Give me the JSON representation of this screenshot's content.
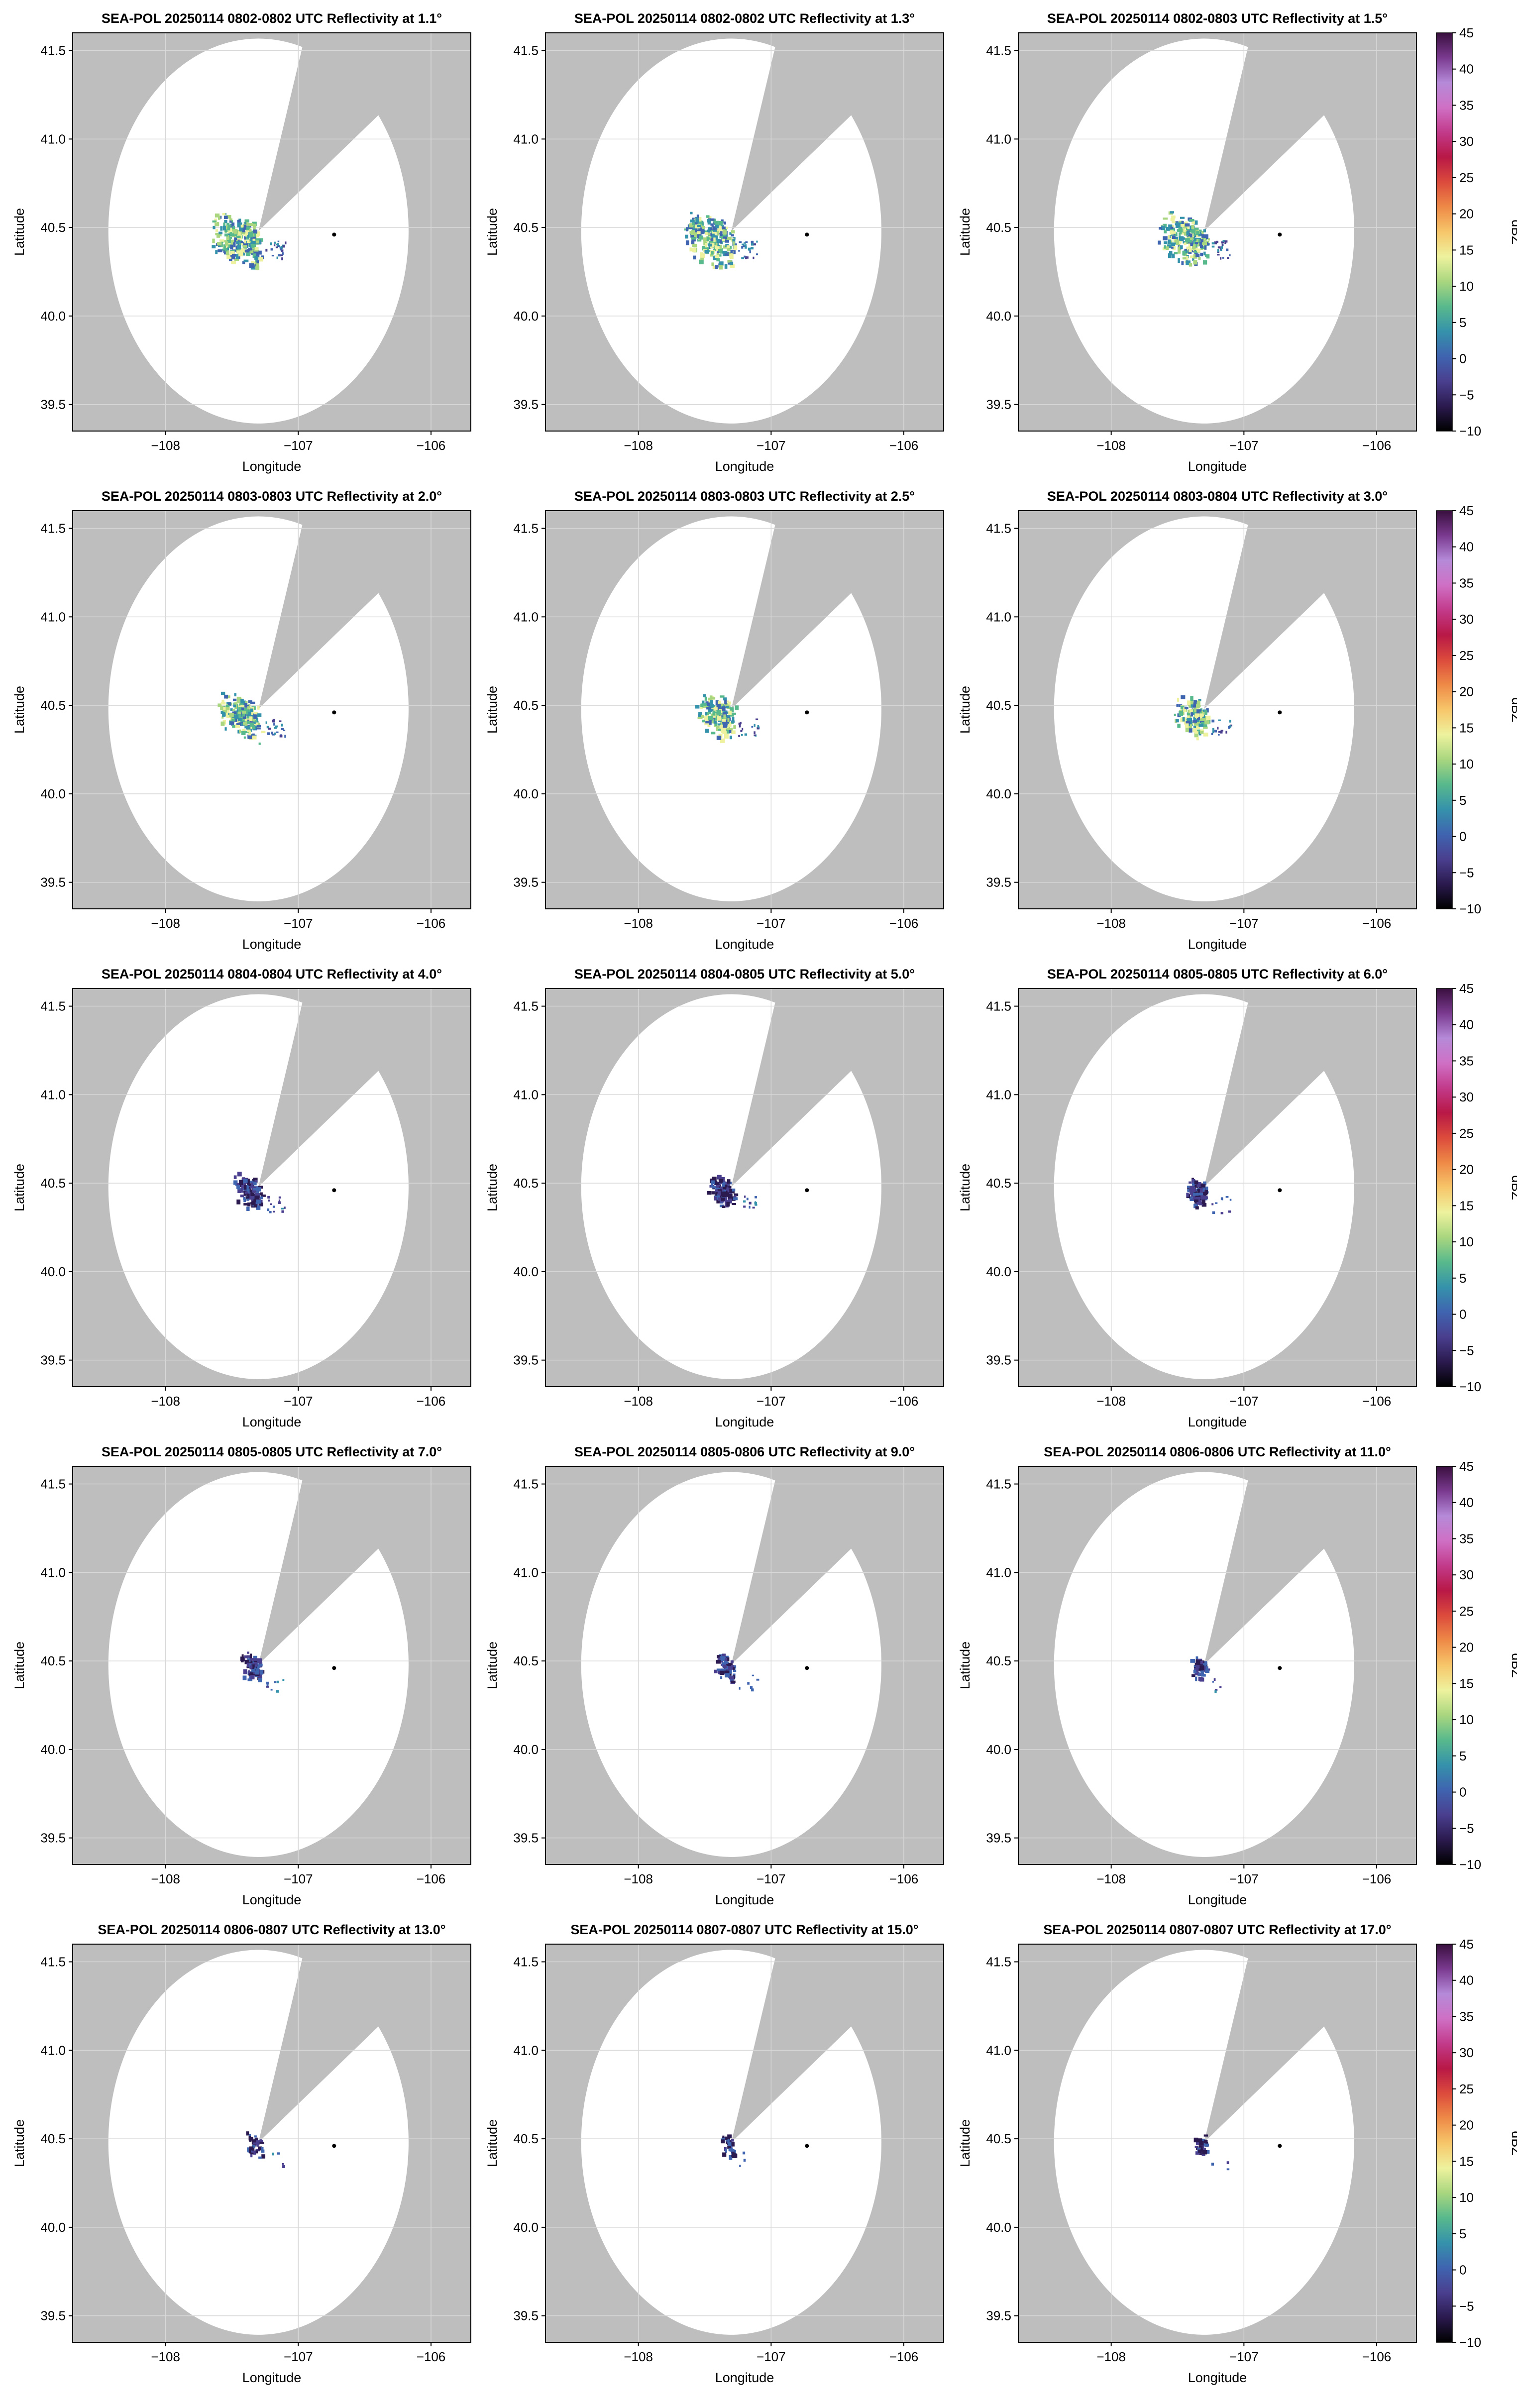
{
  "figure": {
    "product": "Reflectivity",
    "radar": "SEA-POL",
    "date": "20250114"
  },
  "colorbar": {
    "label": "dBZ",
    "ticks": [
      "45",
      "40",
      "35",
      "30",
      "25",
      "20",
      "15",
      "10",
      "5",
      "0",
      "−5",
      "−10"
    ],
    "range": [
      -10,
      45
    ],
    "colors": [
      "#000000",
      "#2b1a4f",
      "#4a3f8f",
      "#3f64b0",
      "#3592ab",
      "#58b98c",
      "#a9d67f",
      "#eef29e",
      "#f7c66a",
      "#ee8a47",
      "#dc4b3c",
      "#b81846",
      "#c23a8a",
      "#cf70c5",
      "#b58ad8",
      "#7a3a8f",
      "#3a0f3f"
    ]
  },
  "axes": {
    "xlabel": "Longitude",
    "ylabel": "Latitude",
    "xticks": [
      "−108",
      "−107",
      "−106"
    ],
    "yticks": [
      "41.5",
      "41.0",
      "40.5",
      "40.0",
      "39.5"
    ],
    "xlim": [
      -108.7,
      -105.7
    ],
    "ylim": [
      39.35,
      41.6
    ]
  },
  "colors": {
    "blocked": "#bebebe",
    "grid": "#d8d8d8"
  },
  "chart_data": [
    {
      "type": "heatmap",
      "title": "SEA-POL 20250114 0802-0802 UTC Reflectivity at 1.1°",
      "elevation_deg": 1.1,
      "echo_level": 1.0
    },
    {
      "type": "heatmap",
      "title": "SEA-POL 20250114 0802-0802 UTC Reflectivity at 1.3°",
      "elevation_deg": 1.3,
      "echo_level": 0.95
    },
    {
      "type": "heatmap",
      "title": "SEA-POL 20250114 0802-0803 UTC Reflectivity at 1.5°",
      "elevation_deg": 1.5,
      "echo_level": 0.9
    },
    {
      "type": "heatmap",
      "title": "SEA-POL 20250114 0803-0803 UTC Reflectivity at 2.0°",
      "elevation_deg": 2.0,
      "echo_level": 0.8
    },
    {
      "type": "heatmap",
      "title": "SEA-POL 20250114 0803-0803 UTC Reflectivity at 2.5°",
      "elevation_deg": 2.5,
      "echo_level": 0.7
    },
    {
      "type": "heatmap",
      "title": "SEA-POL 20250114 0803-0804 UTC Reflectivity at 3.0°",
      "elevation_deg": 3.0,
      "echo_level": 0.62
    },
    {
      "type": "heatmap",
      "title": "SEA-POL 20250114 0804-0804 UTC Reflectivity at 4.0°",
      "elevation_deg": 4.0,
      "echo_level": 0.5
    },
    {
      "type": "heatmap",
      "title": "SEA-POL 20250114 0804-0805 UTC Reflectivity at 5.0°",
      "elevation_deg": 5.0,
      "echo_level": 0.42
    },
    {
      "type": "heatmap",
      "title": "SEA-POL 20250114 0805-0805 UTC Reflectivity at 6.0°",
      "elevation_deg": 6.0,
      "echo_level": 0.35
    },
    {
      "type": "heatmap",
      "title": "SEA-POL 20250114 0805-0805 UTC Reflectivity at 7.0°",
      "elevation_deg": 7.0,
      "echo_level": 0.3
    },
    {
      "type": "heatmap",
      "title": "SEA-POL 20250114 0805-0806 UTC Reflectivity at 9.0°",
      "elevation_deg": 9.0,
      "echo_level": 0.25
    },
    {
      "type": "heatmap",
      "title": "SEA-POL 20250114 0806-0806 UTC Reflectivity at 11.0°",
      "elevation_deg": 11.0,
      "echo_level": 0.2
    },
    {
      "type": "heatmap",
      "title": "SEA-POL 20250114 0806-0807 UTC Reflectivity at 13.0°",
      "elevation_deg": 13.0,
      "echo_level": 0.16
    },
    {
      "type": "heatmap",
      "title": "SEA-POL 20250114 0807-0807 UTC Reflectivity at 15.0°",
      "elevation_deg": 15.0,
      "echo_level": 0.13
    },
    {
      "type": "heatmap",
      "title": "SEA-POL 20250114 0807-0807 UTC Reflectivity at 17.0°",
      "elevation_deg": 17.0,
      "echo_level": 0.11
    }
  ]
}
